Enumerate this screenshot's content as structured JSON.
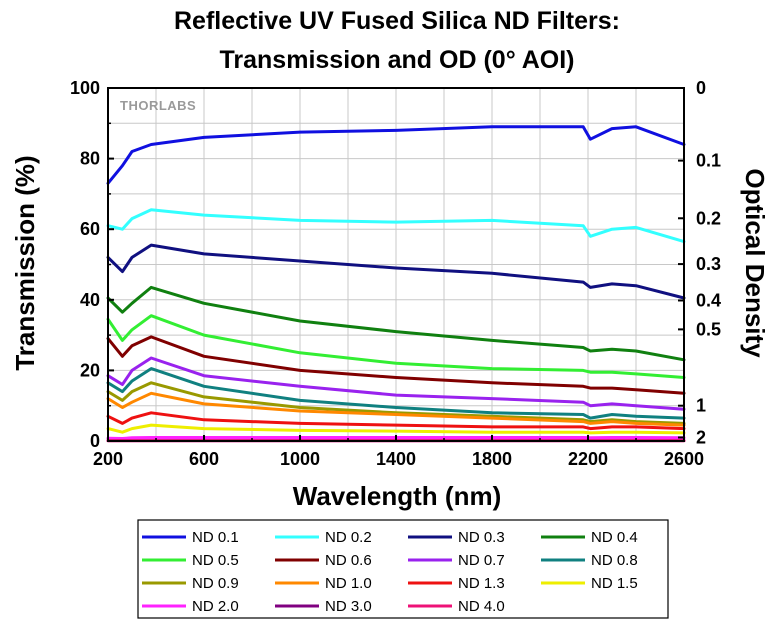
{
  "chart_data": {
    "type": "line",
    "title": "Reflective UV Fused Silica ND Filters:",
    "subtitle": "Transmission and OD (0° AOI)",
    "xlabel": "Wavelength (nm)",
    "ylabel": "Transmission (%)",
    "y2label": "Optical Density",
    "xlim": [
      200,
      2600
    ],
    "ylim": [
      0,
      100
    ],
    "xticks": [
      "200",
      "600",
      "1000",
      "1400",
      "1800",
      "2200",
      "2600"
    ],
    "yticks": [
      "0",
      "20",
      "40",
      "60",
      "80",
      "100"
    ],
    "y2ticks": [
      {
        "label": "0",
        "od": 0
      },
      {
        "label": "0.1",
        "od": 0.1
      },
      {
        "label": "0.2",
        "od": 0.2
      },
      {
        "label": "0.3",
        "od": 0.3
      },
      {
        "label": "0.4",
        "od": 0.4
      },
      {
        "label": "0.5",
        "od": 0.5
      },
      {
        "label": "1",
        "od": 1
      },
      {
        "label": "2",
        "od": 2
      }
    ],
    "grid": true,
    "legend_position": "bottom",
    "watermark": "THORLABS",
    "x": [
      200,
      260,
      300,
      380,
      600,
      1000,
      1400,
      1800,
      2180,
      2210,
      2300,
      2400,
      2600
    ],
    "series": [
      {
        "name": "ND 0.1",
        "color": "#1010e0",
        "values": [
          73,
          78,
          82,
          84,
          86,
          87.5,
          88,
          89,
          89,
          85.5,
          88.5,
          89,
          84
        ]
      },
      {
        "name": "ND 0.2",
        "color": "#33ffff",
        "values": [
          61,
          60,
          63,
          65.5,
          64,
          62.5,
          62,
          62.5,
          61,
          58,
          60,
          60.5,
          56.5
        ]
      },
      {
        "name": "ND 0.3",
        "color": "#101080",
        "values": [
          52,
          48,
          52,
          55.5,
          53,
          51,
          49,
          47.5,
          45,
          43.5,
          44.5,
          44,
          40.5
        ]
      },
      {
        "name": "ND 0.4",
        "color": "#108010",
        "values": [
          40.5,
          36.5,
          39,
          43.5,
          39,
          34,
          31,
          28.5,
          26.5,
          25.5,
          26,
          25.5,
          23
        ]
      },
      {
        "name": "ND 0.5",
        "color": "#33ee33",
        "values": [
          34.5,
          28.5,
          31.5,
          35.5,
          30,
          25,
          22,
          20.5,
          20,
          19.5,
          19.5,
          19,
          18
        ]
      },
      {
        "name": "ND 0.6",
        "color": "#800000",
        "values": [
          29,
          24,
          27,
          29.5,
          24,
          20,
          18,
          16.5,
          15.5,
          15,
          15,
          14.5,
          13.5
        ]
      },
      {
        "name": "ND 0.7",
        "color": "#9922ee",
        "values": [
          18.5,
          16,
          20,
          23.5,
          18.5,
          15.5,
          13,
          12,
          11,
          10,
          10.5,
          10,
          9
        ]
      },
      {
        "name": "ND 0.8",
        "color": "#108080",
        "values": [
          16.5,
          14,
          17,
          20.5,
          15.5,
          11.5,
          9.5,
          8,
          7.5,
          6.5,
          7.5,
          7,
          6.5
        ]
      },
      {
        "name": "ND 0.9",
        "color": "#999900",
        "values": [
          14,
          11.5,
          14,
          16.5,
          12.5,
          9.5,
          8,
          7,
          6,
          5.5,
          6,
          5.5,
          5
        ]
      },
      {
        "name": "ND 1.0",
        "color": "#ff8800",
        "values": [
          12,
          9.5,
          11,
          13.5,
          10.5,
          8.5,
          7.5,
          6.5,
          5.5,
          5,
          5.5,
          5,
          4.5
        ]
      },
      {
        "name": "ND 1.3",
        "color": "#ee1111",
        "values": [
          7,
          5,
          6.5,
          8,
          6,
          5,
          4.5,
          4,
          4,
          3.5,
          4,
          4,
          3.5
        ]
      },
      {
        "name": "ND 1.5",
        "color": "#eeee00",
        "values": [
          3.5,
          2.5,
          3.5,
          4.5,
          3.5,
          3,
          2.8,
          2.5,
          2.5,
          2.3,
          2.5,
          2.5,
          2.3
        ]
      },
      {
        "name": "ND 2.0",
        "color": "#ff22ff",
        "values": [
          0.8,
          0.7,
          0.9,
          1,
          1,
          1,
          1,
          1,
          1,
          0.9,
          1,
          1,
          0.9
        ]
      },
      {
        "name": "ND 3.0",
        "color": "#800080",
        "values": [
          0.1,
          0.1,
          0.1,
          0.1,
          0.1,
          0.1,
          0.1,
          0.1,
          0.1,
          0.1,
          0.1,
          0.1,
          0.1
        ]
      },
      {
        "name": "ND 4.0",
        "color": "#ee1177",
        "values": [
          0.05,
          0.05,
          0.05,
          0.05,
          0.05,
          0.05,
          0.05,
          0.05,
          0.05,
          0.05,
          0.05,
          0.05,
          0.05
        ]
      }
    ]
  }
}
